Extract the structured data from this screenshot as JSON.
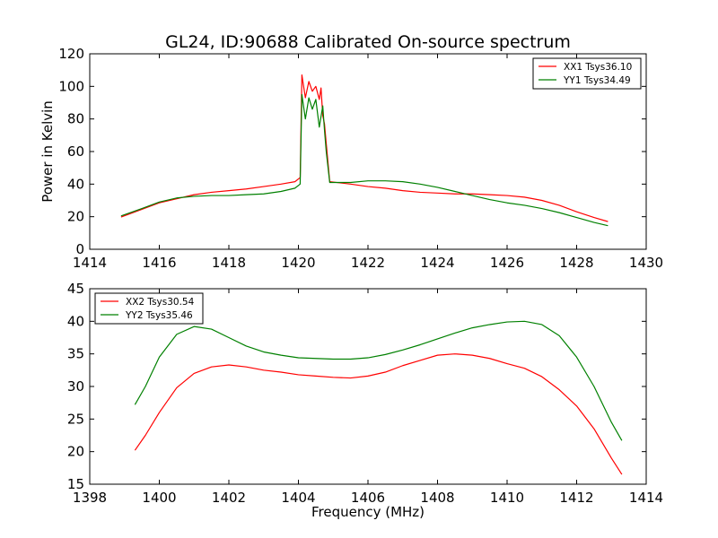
{
  "chart_data": [
    {
      "type": "line",
      "title": "GL24, ID:90688 Calibrated On-source spectrum",
      "xlabel": "",
      "ylabel": "Power in Kelvin",
      "xlim": [
        1414,
        1430
      ],
      "ylim": [
        0,
        120
      ],
      "xticks": [
        "1414",
        "1416",
        "1418",
        "1420",
        "1422",
        "1424",
        "1426",
        "1428",
        "1430"
      ],
      "yticks": [
        "0",
        "20",
        "40",
        "60",
        "80",
        "100",
        "120"
      ],
      "legend_position": "top-right",
      "series": [
        {
          "name": "XX1 Tsys36.10",
          "color": "#ff0000",
          "points": [
            [
              1414.9,
              19.8
            ],
            [
              1415.5,
              24.5
            ],
            [
              1416.0,
              28.5
            ],
            [
              1416.5,
              31.0
            ],
            [
              1417.0,
              33.5
            ],
            [
              1417.5,
              35.0
            ],
            [
              1418.0,
              36.0
            ],
            [
              1418.5,
              37.0
            ],
            [
              1419.0,
              38.5
            ],
            [
              1419.5,
              40.0
            ],
            [
              1419.9,
              41.5
            ],
            [
              1420.05,
              44
            ],
            [
              1420.1,
              107
            ],
            [
              1420.2,
              93
            ],
            [
              1420.3,
              103
            ],
            [
              1420.4,
              97
            ],
            [
              1420.5,
              100
            ],
            [
              1420.6,
              92
            ],
            [
              1420.65,
              99
            ],
            [
              1420.7,
              82
            ],
            [
              1420.75,
              77
            ],
            [
              1420.8,
              65
            ],
            [
              1420.9,
              41.5
            ],
            [
              1421.5,
              40.0
            ],
            [
              1422.0,
              38.5
            ],
            [
              1422.5,
              37.5
            ],
            [
              1423.0,
              36.0
            ],
            [
              1423.5,
              35.0
            ],
            [
              1424.0,
              34.5
            ],
            [
              1424.5,
              34.0
            ],
            [
              1425.0,
              34.0
            ],
            [
              1425.5,
              33.5
            ],
            [
              1426.0,
              33.0
            ],
            [
              1426.5,
              32.0
            ],
            [
              1427.0,
              30.0
            ],
            [
              1427.5,
              27.0
            ],
            [
              1428.0,
              23.0
            ],
            [
              1428.5,
              19.5
            ],
            [
              1428.9,
              17.0
            ]
          ]
        },
        {
          "name": "YY1 Tsys34.49",
          "color": "#008000",
          "points": [
            [
              1414.9,
              20.5
            ],
            [
              1415.5,
              25.0
            ],
            [
              1416.0,
              29.0
            ],
            [
              1416.5,
              31.5
            ],
            [
              1417.0,
              32.5
            ],
            [
              1417.5,
              33.0
            ],
            [
              1418.0,
              33.0
            ],
            [
              1418.5,
              33.5
            ],
            [
              1419.0,
              34.0
            ],
            [
              1419.5,
              35.5
            ],
            [
              1419.9,
              37.5
            ],
            [
              1420.05,
              40
            ],
            [
              1420.1,
              95
            ],
            [
              1420.2,
              80
            ],
            [
              1420.3,
              93
            ],
            [
              1420.4,
              86
            ],
            [
              1420.5,
              92
            ],
            [
              1420.6,
              75
            ],
            [
              1420.7,
              88
            ],
            [
              1420.75,
              73
            ],
            [
              1420.8,
              60
            ],
            [
              1420.9,
              41.0
            ],
            [
              1421.5,
              41.0
            ],
            [
              1422.0,
              42.0
            ],
            [
              1422.5,
              42.0
            ],
            [
              1423.0,
              41.5
            ],
            [
              1423.5,
              40.0
            ],
            [
              1424.0,
              38.0
            ],
            [
              1424.5,
              35.5
            ],
            [
              1425.0,
              33.0
            ],
            [
              1425.5,
              30.5
            ],
            [
              1426.0,
              28.5
            ],
            [
              1426.5,
              27.0
            ],
            [
              1427.0,
              25.0
            ],
            [
              1427.5,
              22.5
            ],
            [
              1428.0,
              19.5
            ],
            [
              1428.5,
              16.5
            ],
            [
              1428.9,
              14.5
            ]
          ]
        }
      ]
    },
    {
      "type": "line",
      "title": "",
      "xlabel": "Frequency (MHz)",
      "ylabel": "",
      "xlim": [
        1398,
        1414
      ],
      "ylim": [
        15,
        45
      ],
      "xticks": [
        "1398",
        "1400",
        "1402",
        "1404",
        "1406",
        "1408",
        "1410",
        "1412",
        "1414"
      ],
      "yticks": [
        "15",
        "20",
        "25",
        "30",
        "35",
        "40",
        "45"
      ],
      "legend_position": "top-left",
      "series": [
        {
          "name": "XX2 Tsys30.54",
          "color": "#ff0000",
          "points": [
            [
              1399.3,
              20.2
            ],
            [
              1399.6,
              22.5
            ],
            [
              1400.0,
              26.0
            ],
            [
              1400.5,
              29.8
            ],
            [
              1401.0,
              32.0
            ],
            [
              1401.5,
              33.0
            ],
            [
              1402.0,
              33.3
            ],
            [
              1402.5,
              33.0
            ],
            [
              1403.0,
              32.5
            ],
            [
              1403.5,
              32.2
            ],
            [
              1404.0,
              31.8
            ],
            [
              1404.5,
              31.6
            ],
            [
              1405.0,
              31.4
            ],
            [
              1405.5,
              31.3
            ],
            [
              1406.0,
              31.6
            ],
            [
              1406.5,
              32.2
            ],
            [
              1407.0,
              33.2
            ],
            [
              1407.5,
              34.0
            ],
            [
              1408.0,
              34.8
            ],
            [
              1408.5,
              35.0
            ],
            [
              1409.0,
              34.8
            ],
            [
              1409.5,
              34.3
            ],
            [
              1410.0,
              33.5
            ],
            [
              1410.5,
              32.8
            ],
            [
              1411.0,
              31.5
            ],
            [
              1411.5,
              29.5
            ],
            [
              1412.0,
              27.0
            ],
            [
              1412.5,
              23.5
            ],
            [
              1413.0,
              19.0
            ],
            [
              1413.3,
              16.5
            ]
          ]
        },
        {
          "name": "YY2 Tsys35.46",
          "color": "#008000",
          "points": [
            [
              1399.3,
              27.2
            ],
            [
              1399.6,
              30.0
            ],
            [
              1400.0,
              34.5
            ],
            [
              1400.5,
              38.0
            ],
            [
              1401.0,
              39.2
            ],
            [
              1401.5,
              38.8
            ],
            [
              1402.0,
              37.5
            ],
            [
              1402.5,
              36.2
            ],
            [
              1403.0,
              35.3
            ],
            [
              1403.5,
              34.8
            ],
            [
              1404.0,
              34.4
            ],
            [
              1404.5,
              34.3
            ],
            [
              1405.0,
              34.2
            ],
            [
              1405.5,
              34.2
            ],
            [
              1406.0,
              34.4
            ],
            [
              1406.5,
              34.9
            ],
            [
              1407.0,
              35.6
            ],
            [
              1407.5,
              36.4
            ],
            [
              1408.0,
              37.3
            ],
            [
              1408.5,
              38.2
            ],
            [
              1409.0,
              39.0
            ],
            [
              1409.5,
              39.5
            ],
            [
              1410.0,
              39.9
            ],
            [
              1410.5,
              40.0
            ],
            [
              1411.0,
              39.5
            ],
            [
              1411.5,
              37.8
            ],
            [
              1412.0,
              34.5
            ],
            [
              1412.5,
              30.0
            ],
            [
              1413.0,
              24.5
            ],
            [
              1413.3,
              21.7
            ]
          ]
        }
      ]
    }
  ]
}
